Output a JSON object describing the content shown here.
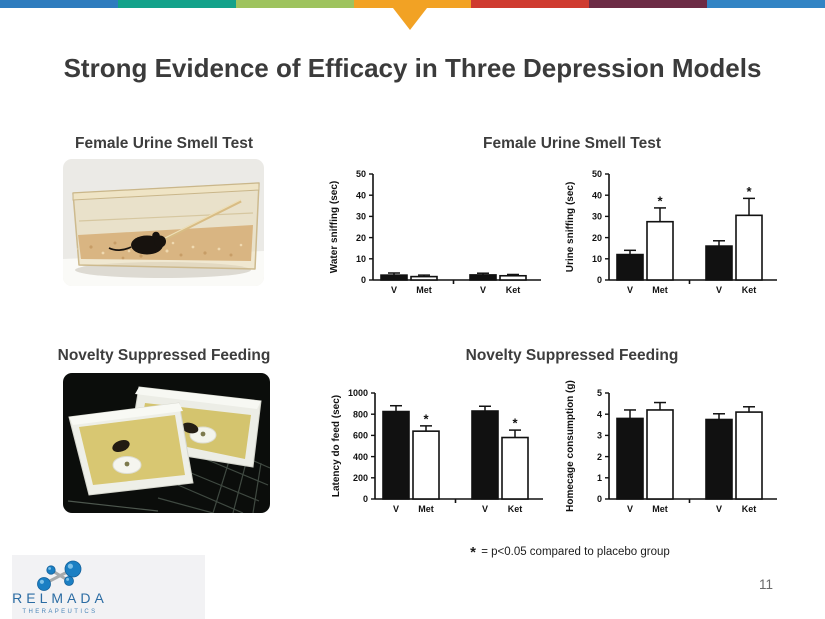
{
  "title": "Strong Evidence of Efficacy in Three Depression Models",
  "page_number": "11",
  "top_bar": {
    "segment_colors": [
      "#2E7CBE",
      "#13A28A",
      "#9EC35E",
      "#F2A224",
      "#CF3B30",
      "#6C2B45",
      "#3284C4"
    ],
    "arrow_color": "#F2A224"
  },
  "sections": [
    {
      "photo_heading": "Female Urine Smell Test",
      "charts_heading": "Female Urine Smell Test",
      "photo_alt": "Black mouse in a clear plastic cage with wood-chip bedding sniffing a diagonal cotton swab"
    },
    {
      "photo_heading": "Novelty Suppressed Feeding",
      "charts_heading": "Novelty Suppressed Feeding",
      "photo_alt": "Two white bins with bedding and central white food dishes, each holding a mouse, on a dark wire rack"
    }
  ],
  "footnote": {
    "star": "*",
    "text": "= p<0.05 compared to placebo group"
  },
  "logo": {
    "name": "RELMADA",
    "subtitle": "THERAPEUTICS",
    "brand_color": "#2B6CA3"
  },
  "chart_data": [
    {
      "type": "bar",
      "title": "Female Urine Smell Test - water",
      "ylabel": "Water sniffing (sec)",
      "ylim": [
        0,
        50
      ],
      "yticks": [
        0,
        10,
        20,
        30,
        40,
        50
      ],
      "categories": [
        "V",
        "Met",
        "V",
        "Ket"
      ],
      "values": [
        2.3,
        1.6,
        2.4,
        2.0
      ],
      "errors": [
        1.0,
        0.7,
        0.8,
        0.6
      ],
      "significant": [
        false,
        false,
        false,
        false
      ],
      "bar_fills": [
        "black",
        "white",
        "black",
        "white"
      ]
    },
    {
      "type": "bar",
      "title": "Female Urine Smell Test - urine",
      "ylabel": "Urine sniffing (sec)",
      "ylim": [
        0,
        50
      ],
      "yticks": [
        0,
        10,
        20,
        30,
        40,
        50
      ],
      "categories": [
        "V",
        "Met",
        "V",
        "Ket"
      ],
      "values": [
        12,
        27.5,
        16,
        30.5
      ],
      "errors": [
        2,
        6.5,
        2.5,
        8
      ],
      "significant": [
        false,
        true,
        false,
        true
      ],
      "bar_fills": [
        "black",
        "white",
        "black",
        "white"
      ]
    },
    {
      "type": "bar",
      "title": "Novelty Suppressed Feeding - latency",
      "ylabel": "Latency do feed (sec)",
      "ylim": [
        0,
        1000
      ],
      "yticks": [
        0,
        200,
        400,
        600,
        800,
        1000
      ],
      "categories": [
        "V",
        "Met",
        "V",
        "Ket"
      ],
      "values": [
        825,
        640,
        830,
        580
      ],
      "errors": [
        55,
        50,
        45,
        70
      ],
      "significant": [
        false,
        true,
        false,
        true
      ],
      "bar_fills": [
        "black",
        "white",
        "black",
        "white"
      ]
    },
    {
      "type": "bar",
      "title": "Novelty Suppressed Feeding - homecage",
      "ylabel": "Homecage consumption (g)",
      "ylim": [
        0,
        5
      ],
      "yticks": [
        0,
        1,
        2,
        3,
        4,
        5
      ],
      "categories": [
        "V",
        "Met",
        "V",
        "Ket"
      ],
      "values": [
        3.8,
        4.2,
        3.75,
        4.1
      ],
      "errors": [
        0.4,
        0.35,
        0.27,
        0.25
      ],
      "significant": [
        false,
        false,
        false,
        false
      ],
      "bar_fills": [
        "black",
        "white",
        "black",
        "white"
      ]
    }
  ]
}
